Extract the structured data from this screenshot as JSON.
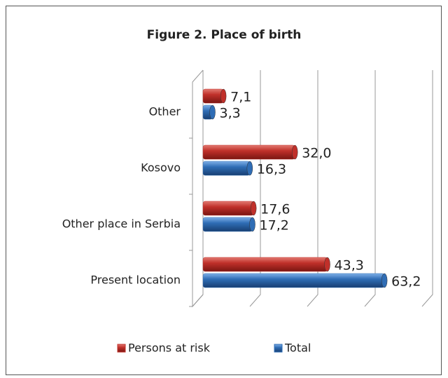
{
  "chart_data": {
    "type": "bar",
    "orientation": "horizontal",
    "title": "Figure 2. Place of birth",
    "categories": [
      "Other",
      "Kosovo",
      "Other place in Serbia",
      "Present location"
    ],
    "series": [
      {
        "name": "Persons at risk",
        "color": "#c0302a",
        "values": [
          7.1,
          32.0,
          17.6,
          43.3
        ],
        "value_labels": [
          "7,1",
          "32,0",
          "17,6",
          "43,3"
        ]
      },
      {
        "name": "Total",
        "color": "#2f6db5",
        "values": [
          3.3,
          16.3,
          17.2,
          63.2
        ],
        "value_labels": [
          "3,3",
          "16,3",
          "17,2",
          "63,2"
        ]
      }
    ],
    "xlim": [
      0,
      80
    ],
    "xticks": [
      0,
      20,
      40,
      60,
      80
    ],
    "grid": true,
    "legend": "bottom"
  }
}
